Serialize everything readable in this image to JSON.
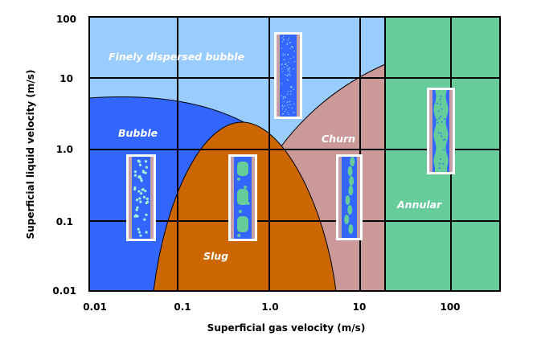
{
  "axes": {
    "x_title": "Superficial gas velocity (m/s)",
    "y_title": "Superficial liquid velocity (m/s)",
    "x_ticks": [
      "0.01",
      "0.1",
      "1.0",
      "10",
      "100"
    ],
    "y_ticks": [
      "100",
      "10",
      "1.0",
      "0.1",
      "0.01"
    ],
    "scale": "log-log"
  },
  "regions": {
    "dispersed": {
      "label": "Finely dispersed bubble",
      "color": "#99ccff"
    },
    "bubble": {
      "label": "Bubble",
      "color": "#3366ff"
    },
    "slug": {
      "label": "Slug",
      "color": "#cc6600"
    },
    "churn": {
      "label": "Churn",
      "color": "#cc9999"
    },
    "annular": {
      "label": "Annular",
      "color": "#66cc99"
    }
  },
  "colors": {
    "grid": "#000000",
    "pipe_wall": "#c8a0a8",
    "pipe_liquid": "#3366ff",
    "gas": "#66cc99",
    "frame": "#ffffff"
  }
}
